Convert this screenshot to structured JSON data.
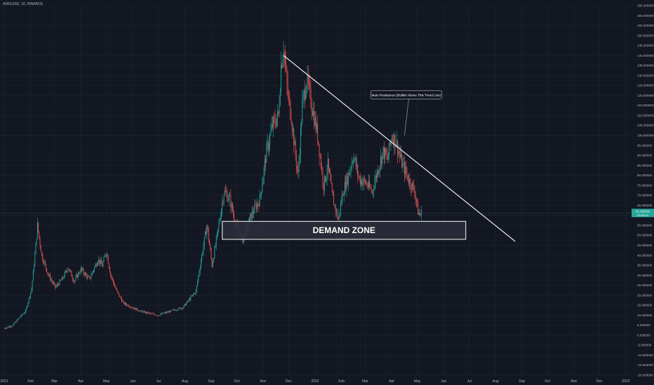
{
  "header": {
    "symbol": "AVAXUSD, 1D, BINANCE"
  },
  "colors": {
    "background": "#131722",
    "up": "#26a69a",
    "down": "#ef5350",
    "axis_text": "#b2b5be",
    "trendline": "#ffffff",
    "price_badge": "#26a69a",
    "zone_fill": "#2a2e39",
    "zone_border": "#ffffff"
  },
  "chart_data": {
    "type": "candlestick",
    "x_axis": {
      "ticks": [
        "2021",
        "Feb",
        "Mar",
        "Apr",
        "May",
        "Jun",
        "Jul",
        "Aug",
        "Sep",
        "Oct",
        "Nov",
        "Dec",
        "2022",
        "Feb",
        "Mar",
        "Apr",
        "May",
        "Jun",
        "Jul",
        "Aug",
        "Sep",
        "Oct",
        "Nov",
        "Dec",
        "2023"
      ],
      "tick_days": [
        0,
        31,
        59,
        90,
        120,
        151,
        181,
        212,
        243,
        273,
        304,
        334,
        365,
        396,
        424,
        455,
        485,
        516,
        546,
        577,
        608,
        638,
        669,
        699,
        730
      ],
      "range_days": [
        -5,
        735
      ]
    },
    "y_axis": {
      "ylim": [
        -20,
        165
      ],
      "ticks": [
        "165.000000",
        "160.000000",
        "155.000000",
        "150.000000",
        "145.000000",
        "140.000000",
        "135.000000",
        "130.000000",
        "125.000000",
        "120.000000",
        "115.000000",
        "110.000000",
        "105.000000",
        "100.000000",
        "95.000000",
        "90.000000",
        "85.000000",
        "80.000000",
        "75.000000",
        "70.000000",
        "65.000000",
        "60.000000",
        "55.000000",
        "50.000000",
        "45.000000",
        "40.000000",
        "35.000000",
        "30.000000",
        "25.000000",
        "20.000000",
        "15.000000",
        "10.000000",
        "5.000000",
        "0.000000",
        "-5.000000",
        "-10.000000",
        "-15.000000",
        "-20.000000"
      ],
      "tick_values": [
        165,
        160,
        155,
        150,
        145,
        140,
        135,
        130,
        125,
        120,
        115,
        110,
        105,
        100,
        95,
        90,
        85,
        80,
        75,
        70,
        65,
        60,
        55,
        50,
        45,
        40,
        35,
        30,
        25,
        20,
        15,
        10,
        5,
        0,
        -5,
        -10,
        -15,
        -20
      ]
    },
    "last_price": {
      "label": "61.23XXX",
      "sub": "00:00:00"
    },
    "price_path": [
      [
        0,
        3.5
      ],
      [
        10,
        5
      ],
      [
        18,
        9
      ],
      [
        25,
        12
      ],
      [
        30,
        20
      ],
      [
        32,
        23
      ],
      [
        36,
        40
      ],
      [
        39,
        55
      ],
      [
        44,
        40
      ],
      [
        52,
        30
      ],
      [
        60,
        24
      ],
      [
        68,
        28
      ],
      [
        75,
        34
      ],
      [
        82,
        27
      ],
      [
        90,
        33
      ],
      [
        100,
        28
      ],
      [
        110,
        38
      ],
      [
        115,
        35
      ],
      [
        120,
        42
      ],
      [
        125,
        30
      ],
      [
        132,
        22
      ],
      [
        140,
        16
      ],
      [
        150,
        14
      ],
      [
        160,
        12
      ],
      [
        170,
        11
      ],
      [
        180,
        10
      ],
      [
        195,
        12
      ],
      [
        210,
        14
      ],
      [
        225,
        22
      ],
      [
        232,
        40
      ],
      [
        238,
        55
      ],
      [
        244,
        35
      ],
      [
        250,
        50
      ],
      [
        258,
        72
      ],
      [
        265,
        68
      ],
      [
        272,
        55
      ],
      [
        280,
        48
      ],
      [
        290,
        60
      ],
      [
        300,
        68
      ],
      [
        308,
        92
      ],
      [
        315,
        105
      ],
      [
        322,
        110
      ],
      [
        325,
        135
      ],
      [
        328,
        145
      ],
      [
        333,
        120
      ],
      [
        337,
        110
      ],
      [
        342,
        90
      ],
      [
        345,
        80
      ],
      [
        350,
        115
      ],
      [
        355,
        128
      ],
      [
        360,
        118
      ],
      [
        368,
        100
      ],
      [
        375,
        75
      ],
      [
        380,
        85
      ],
      [
        385,
        70
      ],
      [
        392,
        58
      ],
      [
        398,
        72
      ],
      [
        404,
        80
      ],
      [
        410,
        90
      ],
      [
        417,
        78
      ],
      [
        425,
        76
      ],
      [
        432,
        72
      ],
      [
        440,
        85
      ],
      [
        445,
        92
      ],
      [
        450,
        88
      ],
      [
        455,
        100
      ],
      [
        460,
        97
      ],
      [
        467,
        86
      ],
      [
        475,
        78
      ],
      [
        482,
        72
      ],
      [
        486,
        62
      ],
      [
        488,
        60
      ],
      [
        490,
        61.2
      ]
    ],
    "trendline": {
      "from": [
        328,
        140
      ],
      "to": [
        600,
        47
      ]
    },
    "demand_zone": {
      "x": [
        256,
        542
      ],
      "y": [
        48,
        57
      ],
      "label": "DEMAND ZONE"
    },
    "annotation": {
      "text": "Main Resistance (Bullish Above This Trend Line)",
      "anchor": [
        470,
        100
      ],
      "box_center": [
        470,
        120
      ]
    }
  }
}
